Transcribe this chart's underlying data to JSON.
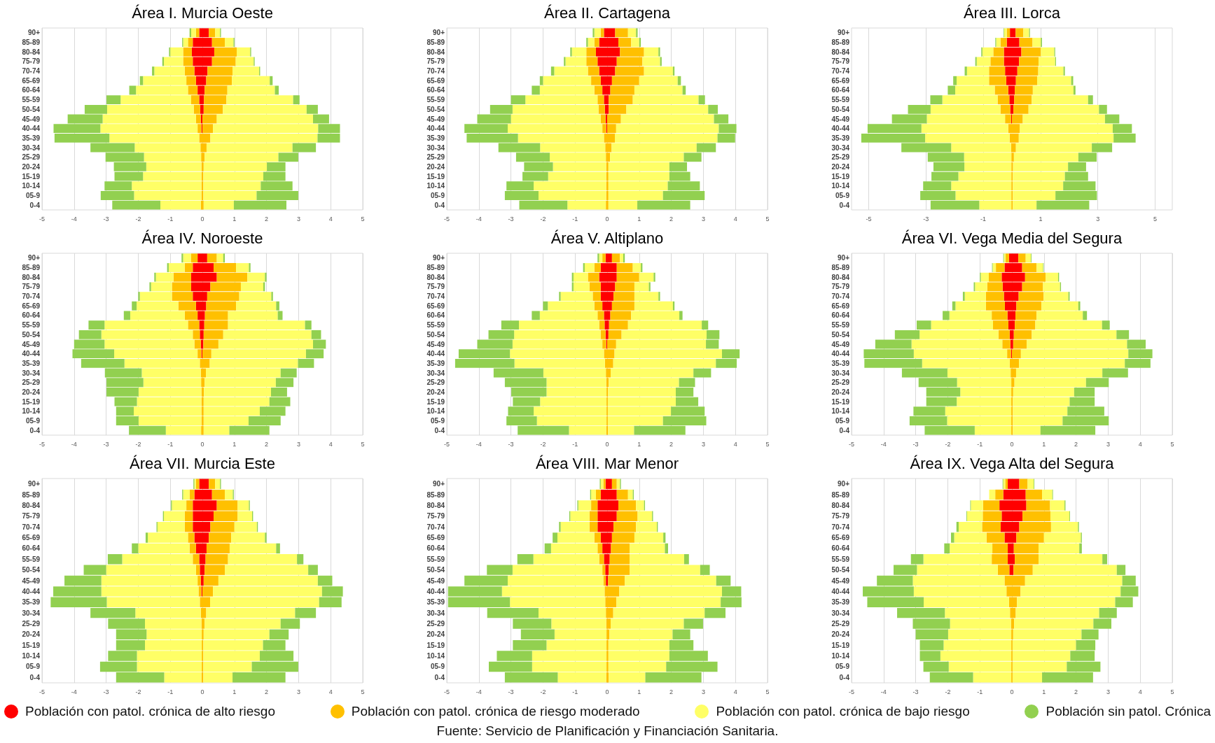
{
  "chart_data": [
    {
      "type": "bar",
      "orientation": "horizontal",
      "stacked": true,
      "title": "Área I. Murcia Oeste",
      "grid": "x",
      "xlim": [
        -5,
        5
      ],
      "xticks": [
        -5,
        -4,
        -3,
        -2,
        -1,
        0,
        1,
        2,
        3,
        4,
        5
      ],
      "categories": [
        "90+",
        "85-89",
        "80-84",
        "75-79",
        "70-74",
        "65-69",
        "60-64",
        "55-59",
        "50-54",
        "45-49",
        "40-44",
        "35-39",
        "30-34",
        "25-29",
        "20-24",
        "15-19",
        "10-14",
        "05-9",
        "0-4"
      ],
      "series": [
        {
          "color": "#ff0000",
          "values": [
            -0.1,
            -0.3,
            -0.33,
            -0.3,
            -0.25,
            -0.2,
            -0.15,
            -0.1,
            -0.07,
            -0.05,
            -0.03,
            null,
            null,
            null,
            null,
            null,
            null,
            null,
            null
          ]
        },
        {
          "color": "#ffc000",
          "values": [
            -0.1,
            -0.15,
            -0.27,
            -0.3,
            -0.3,
            -0.3,
            -0.3,
            -0.25,
            -0.2,
            -0.15,
            -0.12,
            -0.1,
            -0.06,
            -0.04,
            -0.03,
            -0.03,
            -0.03,
            -0.03,
            -0.05
          ]
        },
        {
          "color": "#ffff66",
          "values": [
            -0.15,
            -0.15,
            -0.4,
            -0.6,
            -0.95,
            -1.35,
            -1.62,
            -2.2,
            -2.7,
            -2.91,
            -3.03,
            -2.8,
            -2.05,
            -1.78,
            -1.72,
            -1.82,
            -2.17,
            -2.1,
            -1.26
          ]
        },
        {
          "color": "#92d050",
          "values": [
            -0.05,
            -0.03,
            -0.04,
            -0.05,
            -0.07,
            -0.1,
            -0.21,
            -0.44,
            -0.7,
            -1.09,
            -1.46,
            -1.71,
            -1.38,
            -1.2,
            -1.01,
            -0.89,
            -0.85,
            -1.04,
            -1.5
          ]
        },
        {
          "color": "#ff0000",
          "values": [
            0.2,
            0.3,
            0.37,
            0.3,
            0.16,
            0.12,
            0.07,
            0.05,
            0.04,
            null,
            null,
            null,
            null,
            null,
            null,
            null,
            null,
            null,
            null
          ]
        },
        {
          "color": "#ffc000",
          "values": [
            0.2,
            0.4,
            0.7,
            0.74,
            0.78,
            0.8,
            0.71,
            0.7,
            0.6,
            0.45,
            0.33,
            0.25,
            0.13,
            0.07,
            0.04,
            0.03,
            0.03,
            0.03,
            0.04
          ]
        },
        {
          "color": "#ffff66",
          "values": [
            0.15,
            0.27,
            0.42,
            0.56,
            0.83,
            1.18,
            1.48,
            2.08,
            2.61,
            3.0,
            3.28,
            3.34,
            2.68,
            2.3,
            1.97,
            1.87,
            1.79,
            1.66,
            0.94
          ]
        },
        {
          "color": "#92d050",
          "values": [
            0.03,
            0.03,
            0.03,
            0.03,
            0.03,
            0.09,
            0.12,
            0.2,
            0.35,
            0.5,
            0.68,
            0.7,
            0.73,
            0.62,
            0.58,
            0.69,
            0.99,
            1.3,
            1.64
          ]
        }
      ]
    },
    {
      "type": "bar",
      "orientation": "horizontal",
      "stacked": true,
      "title": "Área II. Cartagena",
      "grid": "x",
      "xlim": [
        -5,
        5
      ],
      "xticks": [
        -5,
        -4,
        -3,
        -2,
        -1,
        0,
        1,
        2,
        3,
        4,
        5
      ],
      "categories": [
        "90+",
        "85-89",
        "80-84",
        "75-79",
        "70-74",
        "65-69",
        "60-64",
        "55-59",
        "50-54",
        "45-49",
        "40-44",
        "35-39",
        "30-34",
        "25-29",
        "20-24",
        "15-19",
        "10-14",
        "05-9",
        "0-4"
      ],
      "series": [
        {
          "color": "#ff0000",
          "values": [
            -0.1,
            -0.25,
            -0.35,
            -0.3,
            -0.25,
            -0.2,
            -0.15,
            -0.1,
            -0.07,
            -0.05,
            -0.03,
            null,
            null,
            null,
            null,
            null,
            null,
            null,
            null
          ]
        },
        {
          "color": "#ffc000",
          "values": [
            -0.1,
            -0.15,
            -0.3,
            -0.35,
            -0.35,
            -0.3,
            -0.25,
            -0.2,
            -0.2,
            -0.15,
            -0.12,
            -0.1,
            -0.06,
            -0.04,
            -0.03,
            -0.03,
            -0.03,
            -0.03,
            -0.04
          ]
        },
        {
          "color": "#ffff66",
          "values": [
            -0.2,
            -0.2,
            -0.45,
            -0.65,
            -1.05,
            -1.5,
            -1.7,
            -2.25,
            -2.68,
            -2.8,
            -2.95,
            -2.68,
            -2.03,
            -1.75,
            -1.66,
            -1.81,
            -2.26,
            -2.11,
            -1.2
          ]
        },
        {
          "color": "#92d050",
          "values": [
            -0.05,
            -0.05,
            -0.05,
            -0.05,
            -0.1,
            -0.1,
            -0.25,
            -0.45,
            -0.7,
            -1.05,
            -1.35,
            -1.6,
            -1.3,
            -1.05,
            -0.9,
            -0.8,
            -0.85,
            -1.05,
            -1.5
          ]
        },
        {
          "color": "#ff0000",
          "values": [
            0.25,
            0.35,
            0.4,
            0.3,
            0.25,
            0.15,
            0.1,
            0.05,
            0.05,
            null,
            null,
            null,
            null,
            null,
            null,
            null,
            null,
            null,
            null
          ]
        },
        {
          "color": "#ffc000",
          "values": [
            0.4,
            0.4,
            0.75,
            0.8,
            0.9,
            0.85,
            0.75,
            0.75,
            0.55,
            0.43,
            0.28,
            0.24,
            0.14,
            0.09,
            0.04,
            0.04,
            0.04,
            0.04,
            0.04
          ]
        },
        {
          "color": "#ffff66",
          "values": [
            0.25,
            0.25,
            0.45,
            0.55,
            0.9,
            1.2,
            1.5,
            2.05,
            2.55,
            2.9,
            3.2,
            3.2,
            2.65,
            2.3,
            1.9,
            1.9,
            1.85,
            1.7,
            0.9
          ]
        },
        {
          "color": "#92d050",
          "values": [
            0.05,
            0.05,
            0.05,
            0.05,
            0.05,
            0.1,
            0.1,
            0.2,
            0.3,
            0.45,
            0.55,
            0.55,
            0.6,
            0.55,
            0.55,
            0.65,
            1.0,
            1.3,
            1.65
          ]
        }
      ]
    },
    {
      "type": "bar",
      "orientation": "horizontal",
      "stacked": true,
      "title": "Área III. Lorca",
      "grid": "x",
      "xlim": [
        -5.6,
        5.6
      ],
      "xticks": [
        -5,
        -3,
        -1,
        1,
        3,
        5
      ],
      "categories": [
        "90+",
        "85-89",
        "80-84",
        "75-79",
        "70-74",
        "65-69",
        "60-64",
        "55-59",
        "50-54",
        "45-49",
        "40-44",
        "35-39",
        "30-34",
        "25-29",
        "20-24",
        "15-19",
        "10-14",
        "05-9",
        "0-4"
      ],
      "series": [
        {
          "color": "#ff0000",
          "values": [
            -0.07,
            -0.18,
            -0.28,
            -0.28,
            -0.24,
            -0.2,
            -0.13,
            -0.09,
            -0.06,
            -0.03,
            null,
            null,
            null,
            null,
            null,
            null,
            null,
            null,
            null
          ]
        },
        {
          "color": "#ffc000",
          "values": [
            -0.11,
            -0.22,
            -0.37,
            -0.47,
            -0.56,
            -0.6,
            -0.47,
            -0.41,
            -0.34,
            -0.21,
            -0.13,
            -0.08,
            -0.03,
            -0.02,
            -0.02,
            -0.02,
            -0.02,
            -0.02,
            -0.02
          ]
        },
        {
          "color": "#ffff66",
          "values": [
            -0.09,
            -0.15,
            -0.38,
            -0.48,
            -0.77,
            -1.13,
            -1.38,
            -1.93,
            -2.44,
            -2.73,
            -3.03,
            -2.95,
            -2.09,
            -1.65,
            -1.64,
            -1.85,
            -2.1,
            -1.95,
            -1.12
          ]
        },
        {
          "color": "#92d050",
          "values": [
            -0.02,
            -0.03,
            -0.04,
            -0.05,
            -0.08,
            -0.12,
            -0.26,
            -0.42,
            -0.79,
            -1.22,
            -1.88,
            -2.23,
            -1.74,
            -1.27,
            -1.08,
            -0.94,
            -0.98,
            -1.23,
            -1.7
          ]
        },
        {
          "color": "#ff0000",
          "values": [
            0.13,
            0.26,
            0.33,
            0.25,
            0.19,
            0.14,
            0.1,
            0.08,
            0.05,
            null,
            null,
            null,
            null,
            null,
            null,
            null,
            null,
            null,
            null
          ]
        },
        {
          "color": "#ffc000",
          "values": [
            0.27,
            0.46,
            0.68,
            0.68,
            0.73,
            0.74,
            0.63,
            0.61,
            0.53,
            0.38,
            0.27,
            0.24,
            0.14,
            0.07,
            0.04,
            0.03,
            0.03,
            0.03,
            0.03
          ]
        },
        {
          "color": "#ffff66",
          "values": [
            0.2,
            0.29,
            0.47,
            0.58,
            0.88,
            1.19,
            1.42,
            1.97,
            2.46,
            2.87,
            3.25,
            3.31,
            2.65,
            2.25,
            1.92,
            1.82,
            1.76,
            1.49,
            0.83
          ]
        },
        {
          "color": "#92d050",
          "values": [
            0.03,
            0.04,
            0.03,
            0.03,
            0.05,
            0.07,
            0.07,
            0.17,
            0.28,
            0.5,
            0.67,
            0.77,
            0.71,
            0.64,
            0.63,
            0.81,
            1.13,
            1.45,
            1.84
          ]
        }
      ]
    },
    {
      "type": "bar",
      "orientation": "horizontal",
      "stacked": true,
      "title": "Área IV. Noroeste",
      "grid": "x",
      "xlim": [
        -5,
        5
      ],
      "xticks": [
        -5,
        -4,
        -3,
        -2,
        -1,
        0,
        1,
        2,
        3,
        4,
        5
      ],
      "categories": [
        "90+",
        "85-89",
        "80-84",
        "75-79",
        "70-74",
        "65-69",
        "60-64",
        "55-59",
        "50-54",
        "45-49",
        "40-44",
        "35-39",
        "30-34",
        "25-29",
        "20-24",
        "15-19",
        "10-14",
        "05-9",
        "0-4"
      ],
      "series": [
        {
          "color": "#ff0000",
          "values": [
            -0.15,
            -0.3,
            -0.35,
            -0.35,
            -0.3,
            -0.2,
            -0.15,
            -0.1,
            -0.08,
            -0.05,
            -0.03,
            null,
            null,
            null,
            null,
            null,
            null,
            null,
            null
          ]
        },
        {
          "color": "#ffc000",
          "values": [
            -0.2,
            -0.25,
            -0.55,
            -0.6,
            -0.65,
            -0.55,
            -0.4,
            -0.35,
            -0.22,
            -0.2,
            -0.12,
            -0.08,
            -0.05,
            -0.04,
            -0.03,
            -0.03,
            -0.03,
            -0.03,
            -0.04
          ]
        },
        {
          "color": "#ffff66",
          "values": [
            -0.25,
            -0.5,
            -0.55,
            -0.65,
            -1.0,
            -1.3,
            -1.7,
            -2.6,
            -2.85,
            -2.8,
            -2.6,
            -2.35,
            -1.84,
            -1.8,
            -1.96,
            -2.01,
            -2.11,
            -1.96,
            -1.1
          ]
        },
        {
          "color": "#92d050",
          "values": [
            -0.05,
            -0.05,
            -0.05,
            -0.05,
            -0.05,
            -0.15,
            -0.2,
            -0.5,
            -0.7,
            -0.95,
            -1.3,
            -1.35,
            -1.15,
            -1.15,
            -1.0,
            -0.7,
            -0.55,
            -0.7,
            -1.15
          ]
        },
        {
          "color": "#ff0000",
          "values": [
            0.15,
            0.35,
            0.45,
            0.25,
            0.15,
            0.12,
            0.08,
            0.06,
            0.04,
            0.03,
            null,
            null,
            null,
            null,
            null,
            null,
            null,
            null,
            null
          ]
        },
        {
          "color": "#ffc000",
          "values": [
            0.3,
            0.7,
            0.95,
            0.95,
            1.0,
            0.93,
            0.72,
            0.74,
            0.61,
            0.47,
            0.28,
            0.23,
            0.11,
            0.07,
            0.05,
            0.04,
            0.04,
            0.04,
            0.04
          ]
        },
        {
          "color": "#ffff66",
          "values": [
            0.2,
            0.4,
            0.55,
            0.7,
            1.0,
            1.25,
            1.55,
            2.4,
            2.75,
            2.95,
            2.95,
            2.75,
            2.33,
            2.22,
            2.09,
            2.05,
            1.75,
            1.4,
            0.8
          ]
        },
        {
          "color": "#92d050",
          "values": [
            0.05,
            0.05,
            0.05,
            0.05,
            0.05,
            0.1,
            0.15,
            0.2,
            0.3,
            0.4,
            0.55,
            0.5,
            0.5,
            0.55,
            0.5,
            0.65,
            0.8,
            1.0,
            1.25
          ]
        }
      ]
    },
    {
      "type": "bar",
      "orientation": "horizontal",
      "stacked": true,
      "title": "Área V. Altiplano",
      "grid": "x",
      "xlim": [
        -5,
        5
      ],
      "xticks": [
        -5,
        -4,
        -3,
        -2,
        -1,
        0,
        1,
        2,
        3,
        4,
        5
      ],
      "categories": [
        "90+",
        "85-89",
        "80-84",
        "75-79",
        "70-74",
        "65-69",
        "60-64",
        "55-59",
        "50-54",
        "45-49",
        "40-44",
        "35-39",
        "30-34",
        "25-29",
        "20-24",
        "15-19",
        "10-14",
        "05-9",
        "0-4"
      ],
      "series": [
        {
          "color": "#ff0000",
          "values": [
            -0.05,
            -0.2,
            -0.25,
            -0.2,
            -0.2,
            -0.15,
            -0.1,
            -0.08,
            -0.05,
            -0.03,
            null,
            null,
            null,
            null,
            null,
            null,
            null,
            null,
            null
          ]
        },
        {
          "color": "#ffc000",
          "values": [
            -0.1,
            -0.2,
            -0.35,
            -0.35,
            -0.25,
            -0.25,
            -0.2,
            -0.17,
            -0.15,
            -0.12,
            -0.1,
            -0.07,
            -0.04,
            -0.03,
            -0.02,
            -0.02,
            -0.02,
            -0.02,
            -0.03
          ]
        },
        {
          "color": "#ffff66",
          "values": [
            -0.1,
            -0.3,
            -0.45,
            -0.5,
            -1.0,
            -1.45,
            -1.8,
            -2.5,
            -2.7,
            -2.8,
            -2.93,
            -2.82,
            -1.95,
            -1.86,
            -1.87,
            -2.07,
            -2.27,
            -2.17,
            -1.16
          ]
        },
        {
          "color": "#92d050",
          "values": [
            -0.05,
            -0.05,
            -0.05,
            -0.05,
            -0.05,
            -0.15,
            -0.25,
            -0.55,
            -0.8,
            -1.1,
            -1.6,
            -1.85,
            -1.55,
            -1.3,
            -1.1,
            -0.85,
            -0.8,
            -0.95,
            -1.6
          ]
        },
        {
          "color": "#ff0000",
          "values": [
            0.15,
            0.3,
            0.3,
            0.25,
            0.2,
            0.15,
            0.1,
            0.06,
            0.04,
            null,
            null,
            null,
            null,
            null,
            null,
            null,
            null,
            null,
            null
          ]
        },
        {
          "color": "#ffc000",
          "values": [
            0.25,
            0.5,
            0.7,
            0.6,
            0.65,
            0.7,
            0.65,
            0.59,
            0.41,
            0.28,
            0.23,
            0.19,
            0.11,
            0.05,
            0.03,
            0.02,
            0.02,
            0.02,
            0.03
          ]
        },
        {
          "color": "#ffff66",
          "values": [
            0.1,
            0.25,
            0.45,
            0.45,
            0.75,
            1.2,
            1.5,
            2.3,
            2.65,
            2.8,
            3.35,
            3.2,
            2.58,
            2.19,
            2.11,
            2.12,
            1.97,
            1.72,
            0.81
          ]
        },
        {
          "color": "#92d050",
          "values": [
            0.05,
            0.05,
            0.05,
            0.05,
            0.05,
            0.05,
            0.1,
            0.2,
            0.4,
            0.4,
            0.55,
            0.65,
            0.55,
            0.5,
            0.55,
            0.7,
            1.05,
            1.35,
            1.6
          ]
        }
      ]
    },
    {
      "type": "bar",
      "orientation": "horizontal",
      "stacked": true,
      "title": "Área VI. Vega Media del Segura",
      "grid": "x",
      "xlim": [
        -5,
        5
      ],
      "xticks": [
        -5,
        -4,
        -3,
        -2,
        -1,
        0,
        1,
        2,
        3,
        4,
        5
      ],
      "categories": [
        "90+",
        "85-89",
        "80-84",
        "75-79",
        "70-74",
        "65-69",
        "60-64",
        "55-59",
        "50-54",
        "45-49",
        "40-44",
        "35-39",
        "30-34",
        "25-29",
        "20-24",
        "15-19",
        "10-14",
        "05-9",
        "0-4"
      ],
      "series": [
        {
          "color": "#ff0000",
          "values": [
            -0.09,
            -0.23,
            -0.32,
            -0.29,
            -0.25,
            -0.22,
            -0.14,
            -0.11,
            -0.07,
            -0.05,
            -0.03,
            null,
            null,
            null,
            null,
            null,
            null,
            null,
            null
          ]
        },
        {
          "color": "#ffc000",
          "values": [
            -0.11,
            -0.27,
            -0.4,
            -0.48,
            -0.56,
            -0.59,
            -0.49,
            -0.48,
            -0.35,
            -0.25,
            -0.12,
            -0.07,
            -0.04,
            -0.02,
            -0.02,
            -0.02,
            -0.02,
            -0.02,
            -0.02
          ]
        },
        {
          "color": "#ffff66",
          "values": [
            -0.05,
            -0.1,
            -0.25,
            -0.38,
            -0.66,
            -0.95,
            -1.32,
            -1.93,
            -2.46,
            -2.83,
            -2.91,
            -2.73,
            -1.97,
            -1.69,
            -1.59,
            -1.7,
            -2.06,
            -2.0,
            -1.14
          ]
        },
        {
          "color": "#92d050",
          "values": [
            -0.02,
            -0.02,
            -0.03,
            -0.04,
            -0.06,
            -0.1,
            -0.21,
            -0.45,
            -0.77,
            -1.13,
            -1.56,
            -1.8,
            -1.42,
            -1.2,
            -1.06,
            -0.95,
            -0.99,
            -1.17,
            -1.56
          ]
        },
        {
          "color": "#ff0000",
          "values": [
            0.2,
            0.32,
            0.41,
            0.32,
            0.21,
            0.14,
            0.11,
            0.09,
            0.06,
            0.04,
            null,
            null,
            null,
            null,
            null,
            null,
            null,
            null,
            null
          ]
        },
        {
          "color": "#ffc000",
          "values": [
            0.23,
            0.45,
            0.64,
            0.65,
            0.78,
            0.78,
            0.66,
            0.64,
            0.56,
            0.42,
            0.28,
            0.22,
            0.13,
            0.08,
            0.04,
            0.03,
            0.03,
            0.03,
            0.03
          ]
        },
        {
          "color": "#ffff66",
          "values": [
            0.16,
            0.2,
            0.39,
            0.53,
            0.77,
            1.15,
            1.44,
            2.08,
            2.64,
            3.13,
            3.35,
            3.3,
            2.69,
            2.23,
            1.9,
            1.77,
            1.7,
            1.55,
            0.86
          ]
        },
        {
          "color": "#92d050",
          "values": [
            0.02,
            0.02,
            0.03,
            0.03,
            0.04,
            0.06,
            0.13,
            0.24,
            0.39,
            0.58,
            0.75,
            0.8,
            0.8,
            0.71,
            0.64,
            0.78,
            1.15,
            1.44,
            1.71
          ]
        }
      ]
    },
    {
      "type": "bar",
      "orientation": "horizontal",
      "stacked": true,
      "title": "Área VII. Murcia Este",
      "grid": "x",
      "xlim": [
        -5,
        5
      ],
      "xticks": [
        -5,
        -4,
        -3,
        -2,
        -1,
        0,
        1,
        2,
        3,
        4,
        5
      ],
      "categories": [
        "90+",
        "85-89",
        "80-84",
        "75-79",
        "70-74",
        "65-69",
        "60-64",
        "55-59",
        "50-54",
        "45-49",
        "40-44",
        "35-39",
        "30-34",
        "25-29",
        "20-24",
        "15-19",
        "10-14",
        "05-9",
        "0-4"
      ],
      "series": [
        {
          "color": "#ff0000",
          "values": [
            -0.1,
            -0.25,
            -0.3,
            -0.3,
            -0.3,
            -0.25,
            -0.2,
            -0.1,
            -0.08,
            -0.05,
            -0.03,
            null,
            null,
            null,
            null,
            null,
            null,
            null,
            null
          ]
        },
        {
          "color": "#ffc000",
          "values": [
            -0.1,
            -0.15,
            -0.2,
            -0.25,
            -0.25,
            -0.2,
            -0.2,
            -0.2,
            -0.12,
            -0.1,
            -0.09,
            -0.08,
            -0.05,
            -0.03,
            -0.02,
            -0.02,
            -0.02,
            -0.02,
            -0.03
          ]
        },
        {
          "color": "#ffff66",
          "values": [
            -0.05,
            -0.2,
            -0.45,
            -0.65,
            -0.85,
            -1.25,
            -1.6,
            -2.2,
            -2.8,
            -3.0,
            -3.03,
            -2.9,
            -2.04,
            -1.76,
            -1.72,
            -1.77,
            -2.02,
            -2.02,
            -1.16
          ]
        },
        {
          "color": "#92d050",
          "values": [
            -0.03,
            -0.03,
            -0.03,
            -0.03,
            -0.03,
            -0.07,
            -0.2,
            -0.45,
            -0.7,
            -1.15,
            -1.5,
            -1.75,
            -1.4,
            -1.15,
            -0.95,
            -0.9,
            -0.9,
            -1.15,
            -1.5
          ]
        },
        {
          "color": "#ff0000",
          "values": [
            0.2,
            0.3,
            0.45,
            0.35,
            0.25,
            0.2,
            0.13,
            0.1,
            0.07,
            0.04,
            null,
            null,
            null,
            null,
            null,
            null,
            null,
            null,
            null
          ]
        },
        {
          "color": "#ffc000",
          "values": [
            0.2,
            0.4,
            0.65,
            0.75,
            0.75,
            0.7,
            0.72,
            0.7,
            0.63,
            0.46,
            0.33,
            0.24,
            0.12,
            0.07,
            0.04,
            0.03,
            0.03,
            0.03,
            0.03
          ]
        },
        {
          "color": "#ffff66",
          "values": [
            0.15,
            0.25,
            0.35,
            0.45,
            0.7,
            1.05,
            1.45,
            2.15,
            2.6,
            3.1,
            3.4,
            3.4,
            2.77,
            2.37,
            2.05,
            1.86,
            1.76,
            1.51,
            0.91
          ]
        },
        {
          "color": "#92d050",
          "values": [
            0.03,
            0.03,
            0.03,
            0.03,
            0.03,
            0.05,
            0.12,
            0.2,
            0.3,
            0.45,
            0.65,
            0.7,
            0.65,
            0.6,
            0.6,
            0.7,
            1.05,
            1.45,
            1.65
          ]
        }
      ]
    },
    {
      "type": "bar",
      "orientation": "horizontal",
      "stacked": true,
      "title": "Área VIII. Mar Menor",
      "grid": "x",
      "xlim": [
        -5,
        5
      ],
      "xticks": [
        -5,
        -4,
        -3,
        -2,
        -1,
        0,
        1,
        2,
        3,
        4,
        5
      ],
      "categories": [
        "90+",
        "85-89",
        "80-84",
        "75-79",
        "70-74",
        "65-69",
        "60-64",
        "55-59",
        "50-54",
        "45-49",
        "40-44",
        "35-39",
        "30-34",
        "25-29",
        "20-24",
        "15-19",
        "10-14",
        "05-9",
        "0-4"
      ],
      "series": [
        {
          "color": "#ff0000",
          "values": [
            -0.05,
            -0.2,
            -0.3,
            -0.3,
            -0.3,
            -0.2,
            -0.15,
            -0.1,
            -0.06,
            -0.04,
            null,
            null,
            null,
            null,
            null,
            null,
            null,
            null,
            null
          ]
        },
        {
          "color": "#ffc000",
          "values": [
            -0.07,
            -0.15,
            -0.2,
            -0.25,
            -0.25,
            -0.2,
            -0.15,
            -0.15,
            -0.09,
            -0.08,
            -0.08,
            -0.06,
            -0.04,
            -0.03,
            -0.02,
            -0.02,
            -0.02,
            -0.02,
            -0.03
          ]
        },
        {
          "color": "#ffff66",
          "values": [
            -0.08,
            -0.15,
            -0.4,
            -0.6,
            -0.9,
            -1.15,
            -1.45,
            -2.05,
            -2.8,
            -2.98,
            -3.2,
            -2.97,
            -2.1,
            -1.71,
            -1.62,
            -1.87,
            -2.32,
            -2.32,
            -1.51
          ]
        },
        {
          "color": "#92d050",
          "values": [
            -0.03,
            -0.03,
            -0.03,
            -0.03,
            -0.05,
            -0.15,
            -0.2,
            -0.5,
            -0.8,
            -1.35,
            -1.68,
            -1.93,
            -1.6,
            -1.2,
            -1.05,
            -1.05,
            -1.1,
            -1.35,
            -1.65
          ]
        },
        {
          "color": "#ff0000",
          "values": [
            0.15,
            0.3,
            0.35,
            0.3,
            0.2,
            0.15,
            0.12,
            0.08,
            0.05,
            0.03,
            null,
            null,
            null,
            null,
            null,
            null,
            null,
            null,
            null
          ]
        },
        {
          "color": "#ffc000",
          "values": [
            0.15,
            0.35,
            0.55,
            0.65,
            0.7,
            0.7,
            0.58,
            0.62,
            0.65,
            0.52,
            0.38,
            0.29,
            0.19,
            0.11,
            0.07,
            0.04,
            0.04,
            0.04,
            0.05
          ]
        },
        {
          "color": "#ffff66",
          "values": [
            0.1,
            0.15,
            0.25,
            0.45,
            0.65,
            0.9,
            1.1,
            1.7,
            2.2,
            2.85,
            3.2,
            3.25,
            2.85,
            2.28,
            1.97,
            1.9,
            1.9,
            1.8,
            1.14
          ]
        },
        {
          "color": "#92d050",
          "values": [
            0.03,
            0.03,
            0.03,
            0.03,
            0.03,
            0.07,
            0.1,
            0.15,
            0.3,
            0.45,
            0.6,
            0.65,
            0.65,
            0.6,
            0.55,
            0.75,
            1.2,
            1.6,
            1.75
          ]
        }
      ]
    },
    {
      "type": "bar",
      "orientation": "horizontal",
      "stacked": true,
      "title": "Área IX. Vega Alta del Segura",
      "grid": "x",
      "xlim": [
        -5,
        5
      ],
      "xticks": [
        -5,
        -4,
        -3,
        -2,
        -1,
        0,
        1,
        2,
        3,
        4,
        5
      ],
      "legend": "bottom",
      "annotations": [
        "Fuente: Servicio de Planificación y Financiación Sanitaria."
      ],
      "categories": [
        "90+",
        "85-89",
        "80-84",
        "75-79",
        "70-74",
        "65-69",
        "60-64",
        "55-59",
        "50-54",
        "45-49",
        "40-44",
        "35-39",
        "30-34",
        "25-29",
        "20-24",
        "15-19",
        "10-14",
        "05-9",
        "0-4"
      ],
      "series": [
        {
          "color": "#ff0000",
          "values": [
            -0.13,
            -0.27,
            -0.39,
            -0.32,
            -0.35,
            -0.23,
            -0.13,
            -0.13,
            -0.08,
            null,
            null,
            null,
            null,
            null,
            null,
            null,
            null,
            null,
            null
          ]
        },
        {
          "color": "#ffc000",
          "values": [
            -0.08,
            -0.25,
            -0.51,
            -0.59,
            -0.58,
            -0.56,
            -0.48,
            -0.5,
            -0.36,
            -0.23,
            -0.17,
            -0.09,
            -0.06,
            -0.03,
            -0.02,
            -0.02,
            -0.02,
            -0.02,
            -0.02
          ]
        },
        {
          "color": "#ffff66",
          "values": [
            -0.06,
            -0.19,
            -0.38,
            -0.49,
            -0.73,
            -1.01,
            -1.33,
            -2.13,
            -2.52,
            -2.86,
            -2.89,
            -2.66,
            -2.03,
            -1.9,
            -1.97,
            -2.11,
            -2.21,
            -1.95,
            -1.19
          ]
        },
        {
          "color": "#92d050",
          "values": [
            -0.02,
            null,
            -0.02,
            -0.02,
            -0.07,
            -0.1,
            -0.17,
            -0.39,
            -0.73,
            -1.12,
            -1.59,
            -1.76,
            -1.49,
            -1.16,
            -1.01,
            -0.74,
            -0.64,
            -0.79,
            -1.35
          ]
        },
        {
          "name": "Población con patol. crónica de alto riesgo",
          "color": "#ff0000",
          "values": [
            0.23,
            0.43,
            0.45,
            0.33,
            0.23,
            0.14,
            0.06,
            0.09,
            0.05,
            null,
            null,
            null,
            null,
            null,
            null,
            null,
            null,
            null,
            null
          ]
        },
        {
          "name": "Población con patol. crónica de riesgo moderado",
          "color": "#ffc000",
          "values": [
            0.26,
            0.51,
            0.74,
            0.87,
            0.99,
            0.86,
            0.77,
            0.74,
            0.6,
            0.41,
            0.27,
            0.16,
            0.12,
            0.07,
            0.04,
            0.02,
            0.02,
            0.02,
            0.02
          ]
        },
        {
          "name": "Población con patol. crónica de bajo riesgo",
          "color": "#ffff66",
          "values": [
            0.19,
            0.32,
            0.45,
            0.59,
            0.84,
            1.15,
            1.27,
            1.99,
            2.62,
            3.03,
            3.12,
            3.06,
            2.6,
            2.47,
            2.13,
            1.98,
            1.8,
            1.69,
            0.92
          ]
        },
        {
          "name": "Población sin patol. Crónica",
          "color": "#92d050",
          "values": [
            0.02,
            0.02,
            0.03,
            0.02,
            0.03,
            0.03,
            0.08,
            0.15,
            0.27,
            0.42,
            0.55,
            0.55,
            0.55,
            0.56,
            0.53,
            0.6,
            0.76,
            1.05,
            1.59
          ]
        }
      ]
    }
  ]
}
